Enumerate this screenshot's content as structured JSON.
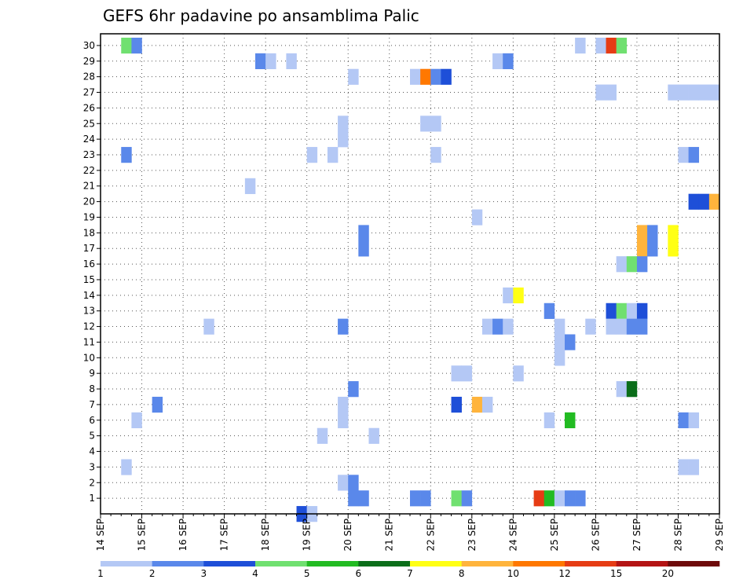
{
  "chart_data": {
    "type": "heatmap",
    "title": "GEFS 6hr padavine po ansamblima Palic",
    "xlabel": "",
    "ylabel": "",
    "x_tick_labels": [
      "14 SEP",
      "15 SEP",
      "16 SEP",
      "17 SEP",
      "18 SEP",
      "19 SEP",
      "20 SEP",
      "21 SEP",
      "22 SEP",
      "23 SEP",
      "24 SEP",
      "25 SEP",
      "26 SEP",
      "27 SEP",
      "28 SEP",
      "29 SEP"
    ],
    "y_tick_labels": [
      "1",
      "2",
      "3",
      "4",
      "5",
      "6",
      "7",
      "8",
      "9",
      "10",
      "11",
      "12",
      "13",
      "14",
      "15",
      "16",
      "17",
      "18",
      "19",
      "20",
      "21",
      "22",
      "23",
      "24",
      "25",
      "26",
      "27",
      "28",
      "29",
      "30"
    ],
    "x_range_steps": [
      0,
      60
    ],
    "y_range_members": [
      1,
      30
    ],
    "time_step_hours": 6,
    "grid": true,
    "legend_position": "bottom",
    "legend": {
      "labels": [
        "1",
        "2",
        "3",
        "4",
        "5",
        "6",
        "7",
        "8",
        "10",
        "12",
        "15",
        "20"
      ],
      "colors": [
        "#b4c8f5",
        "#5a88ea",
        "#1e4fd8",
        "#70e070",
        "#22bb22",
        "#0b6e1a",
        "#ffff14",
        "#ffb43c",
        "#ff7800",
        "#e63c14",
        "#b41414",
        "#6e0a0a"
      ]
    },
    "cells": [
      {
        "member": 30,
        "step": 2,
        "class": 4
      },
      {
        "member": 30,
        "step": 3,
        "class": 2
      },
      {
        "member": 30,
        "step": 46,
        "class": 1
      },
      {
        "member": 30,
        "step": 48,
        "class": 1
      },
      {
        "member": 30,
        "step": 49,
        "class": 10
      },
      {
        "member": 30,
        "step": 50,
        "class": 4
      },
      {
        "member": 29,
        "step": 15,
        "class": 2
      },
      {
        "member": 29,
        "step": 16,
        "class": 1
      },
      {
        "member": 29,
        "step": 18,
        "class": 1
      },
      {
        "member": 29,
        "step": 38,
        "class": 1
      },
      {
        "member": 29,
        "step": 39,
        "class": 2
      },
      {
        "member": 28,
        "step": 24,
        "class": 1
      },
      {
        "member": 28,
        "step": 30,
        "class": 1
      },
      {
        "member": 28,
        "step": 31,
        "class": 9
      },
      {
        "member": 28,
        "step": 32,
        "class": 2
      },
      {
        "member": 28,
        "step": 33,
        "class": 3
      },
      {
        "member": 27,
        "step": 48,
        "class": 1
      },
      {
        "member": 27,
        "step": 49,
        "class": 1
      },
      {
        "member": 27,
        "step": 55,
        "class": 1
      },
      {
        "member": 27,
        "step": 56,
        "class": 1
      },
      {
        "member": 27,
        "step": 57,
        "class": 1
      },
      {
        "member": 27,
        "step": 58,
        "class": 1
      },
      {
        "member": 27,
        "step": 59,
        "class": 1
      },
      {
        "member": 25,
        "step": 23,
        "class": 1
      },
      {
        "member": 25,
        "step": 31,
        "class": 1
      },
      {
        "member": 25,
        "step": 32,
        "class": 1
      },
      {
        "member": 24,
        "step": 23,
        "class": 1
      },
      {
        "member": 23,
        "step": 2,
        "class": 2
      },
      {
        "member": 23,
        "step": 20,
        "class": 1
      },
      {
        "member": 23,
        "step": 22,
        "class": 1
      },
      {
        "member": 23,
        "step": 32,
        "class": 1
      },
      {
        "member": 23,
        "step": 56,
        "class": 1
      },
      {
        "member": 23,
        "step": 57,
        "class": 2
      },
      {
        "member": 21,
        "step": 14,
        "class": 1
      },
      {
        "member": 20,
        "step": 57,
        "class": 3
      },
      {
        "member": 20,
        "step": 58,
        "class": 3
      },
      {
        "member": 20,
        "step": 59,
        "class": 8
      },
      {
        "member": 19,
        "step": 36,
        "class": 1
      },
      {
        "member": 18,
        "step": 25,
        "class": 2
      },
      {
        "member": 18,
        "step": 52,
        "class": 8
      },
      {
        "member": 18,
        "step": 53,
        "class": 2
      },
      {
        "member": 18,
        "step": 55,
        "class": 7
      },
      {
        "member": 17,
        "step": 25,
        "class": 2
      },
      {
        "member": 17,
        "step": 52,
        "class": 8
      },
      {
        "member": 17,
        "step": 53,
        "class": 2
      },
      {
        "member": 17,
        "step": 55,
        "class": 7
      },
      {
        "member": 16,
        "step": 50,
        "class": 1
      },
      {
        "member": 16,
        "step": 51,
        "class": 4
      },
      {
        "member": 16,
        "step": 52,
        "class": 2
      },
      {
        "member": 14,
        "step": 39,
        "class": 1
      },
      {
        "member": 14,
        "step": 40,
        "class": 7
      },
      {
        "member": 13,
        "step": 43,
        "class": 2
      },
      {
        "member": 13,
        "step": 49,
        "class": 3
      },
      {
        "member": 13,
        "step": 50,
        "class": 4
      },
      {
        "member": 13,
        "step": 51,
        "class": 1
      },
      {
        "member": 13,
        "step": 52,
        "class": 3
      },
      {
        "member": 12,
        "step": 10,
        "class": 1
      },
      {
        "member": 12,
        "step": 23,
        "class": 2
      },
      {
        "member": 12,
        "step": 37,
        "class": 1
      },
      {
        "member": 12,
        "step": 38,
        "class": 2
      },
      {
        "member": 12,
        "step": 39,
        "class": 1
      },
      {
        "member": 12,
        "step": 44,
        "class": 1
      },
      {
        "member": 12,
        "step": 47,
        "class": 1
      },
      {
        "member": 12,
        "step": 49,
        "class": 1
      },
      {
        "member": 12,
        "step": 50,
        "class": 1
      },
      {
        "member": 12,
        "step": 51,
        "class": 2
      },
      {
        "member": 12,
        "step": 52,
        "class": 2
      },
      {
        "member": 11,
        "step": 44,
        "class": 1
      },
      {
        "member": 11,
        "step": 45,
        "class": 2
      },
      {
        "member": 10,
        "step": 44,
        "class": 1
      },
      {
        "member": 9,
        "step": 34,
        "class": 1
      },
      {
        "member": 9,
        "step": 35,
        "class": 1
      },
      {
        "member": 9,
        "step": 40,
        "class": 1
      },
      {
        "member": 8,
        "step": 24,
        "class": 2
      },
      {
        "member": 8,
        "step": 50,
        "class": 1
      },
      {
        "member": 8,
        "step": 51,
        "class": 6
      },
      {
        "member": 7,
        "step": 5,
        "class": 2
      },
      {
        "member": 7,
        "step": 23,
        "class": 1
      },
      {
        "member": 7,
        "step": 34,
        "class": 3
      },
      {
        "member": 7,
        "step": 36,
        "class": 8
      },
      {
        "member": 7,
        "step": 37,
        "class": 1
      },
      {
        "member": 6,
        "step": 3,
        "class": 1
      },
      {
        "member": 6,
        "step": 23,
        "class": 1
      },
      {
        "member": 6,
        "step": 43,
        "class": 1
      },
      {
        "member": 6,
        "step": 45,
        "class": 5
      },
      {
        "member": 6,
        "step": 56,
        "class": 2
      },
      {
        "member": 6,
        "step": 57,
        "class": 1
      },
      {
        "member": 5,
        "step": 21,
        "class": 1
      },
      {
        "member": 5,
        "step": 26,
        "class": 1
      },
      {
        "member": 3,
        "step": 2,
        "class": 1
      },
      {
        "member": 3,
        "step": 56,
        "class": 1
      },
      {
        "member": 3,
        "step": 57,
        "class": 1
      },
      {
        "member": 2,
        "step": 23,
        "class": 1
      },
      {
        "member": 2,
        "step": 24,
        "class": 2
      },
      {
        "member": 1,
        "step": 24,
        "class": 2
      },
      {
        "member": 1,
        "step": 25,
        "class": 2
      },
      {
        "member": 1,
        "step": 30,
        "class": 2
      },
      {
        "member": 1,
        "step": 31,
        "class": 2
      },
      {
        "member": 1,
        "step": 34,
        "class": 4
      },
      {
        "member": 1,
        "step": 35,
        "class": 2
      },
      {
        "member": 1,
        "step": 42,
        "class": 10
      },
      {
        "member": 1,
        "step": 43,
        "class": 5
      },
      {
        "member": 1,
        "step": 44,
        "class": 1
      },
      {
        "member": 1,
        "step": 45,
        "class": 2
      },
      {
        "member": 1,
        "step": 46,
        "class": 2
      },
      {
        "member": 0,
        "step": 19,
        "class": 3
      },
      {
        "member": 0,
        "step": 20,
        "class": 1
      }
    ]
  }
}
